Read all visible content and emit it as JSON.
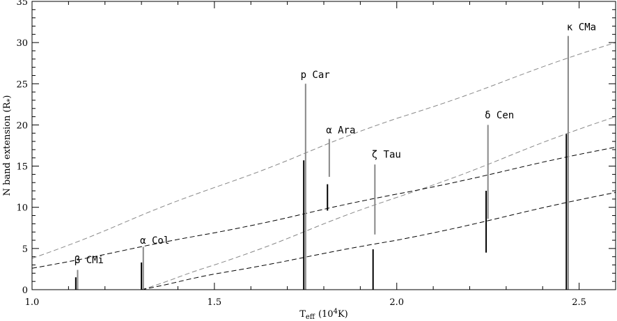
{
  "chart_data": {
    "type": "scatter",
    "xlabel": "T",
    "xlabel_sub": "eff",
    "xlabel_unit": "(10",
    "xlabel_unit_exp": "4",
    "xlabel_unit_end": "K)",
    "ylabel": "N band extension (R",
    "ylabel_sub": "*",
    "ylabel_end": ")",
    "xlim": [
      1.0,
      2.6
    ],
    "ylim": [
      0,
      35
    ],
    "xticks": [
      {
        "value": 1.0,
        "label": "1.0"
      },
      {
        "value": 1.5,
        "label": "1.5"
      },
      {
        "value": 2.0,
        "label": "2.0"
      },
      {
        "value": 2.5,
        "label": "2.5"
      }
    ],
    "yticks": [
      {
        "value": 0,
        "label": "0"
      },
      {
        "value": 5,
        "label": "5"
      },
      {
        "value": 10,
        "label": "10"
      },
      {
        "value": 15,
        "label": "15"
      },
      {
        "value": 20,
        "label": "20"
      },
      {
        "value": 25,
        "label": "25"
      },
      {
        "value": 30,
        "label": "30"
      },
      {
        "value": 35,
        "label": "35"
      }
    ],
    "stars": [
      {
        "name": "β CMi",
        "label_x": 1.12,
        "label_y": 3.2,
        "bars": [
          {
            "x": 1.12,
            "y0": 0,
            "y1": 1.5,
            "color": "#000000"
          },
          {
            "x": 1.125,
            "y0": 0,
            "y1": 2.4,
            "color": "#888888"
          }
        ]
      },
      {
        "name": "α Col",
        "label_x": 1.3,
        "label_y": 5.6,
        "bars": [
          {
            "x": 1.3,
            "y0": 0,
            "y1": 3.3,
            "color": "#000000"
          },
          {
            "x": 1.305,
            "y0": 0,
            "y1": 5.2,
            "color": "#888888"
          }
        ]
      },
      {
        "name": "p Car",
        "label_x": 1.74,
        "label_y": 25.7,
        "bars": [
          {
            "x": 1.745,
            "y0": 0,
            "y1": 15.7,
            "color": "#000000"
          },
          {
            "x": 1.75,
            "y0": 0,
            "y1": 25.0,
            "color": "#888888"
          }
        ]
      },
      {
        "name": "α Ara",
        "label_x": 1.81,
        "label_y": 19.0,
        "bars": [
          {
            "x": 1.81,
            "y0": 9.6,
            "y1": 12.8,
            "color": "#000000"
          },
          {
            "x": 1.815,
            "y0": 13.7,
            "y1": 18.3,
            "color": "#888888"
          }
        ]
      },
      {
        "name": "ζ Tau",
        "label_x": 1.935,
        "label_y": 16.0,
        "bars": [
          {
            "x": 1.935,
            "y0": 0,
            "y1": 4.9,
            "color": "#000000"
          },
          {
            "x": 1.94,
            "y0": 6.7,
            "y1": 15.2,
            "color": "#888888"
          }
        ]
      },
      {
        "name": "δ Cen",
        "label_x": 2.245,
        "label_y": 20.8,
        "bars": [
          {
            "x": 2.245,
            "y0": 4.5,
            "y1": 12.0,
            "color": "#000000"
          },
          {
            "x": 2.25,
            "y0": 8.6,
            "y1": 20.0,
            "color": "#888888"
          }
        ]
      },
      {
        "name": "κ CMa",
        "label_x": 2.47,
        "label_y": 31.5,
        "bars": [
          {
            "x": 2.465,
            "y0": 0,
            "y1": 18.9,
            "color": "#000000"
          },
          {
            "x": 2.47,
            "y0": 0,
            "y1": 30.8,
            "color": "#888888"
          }
        ]
      }
    ],
    "curves": [
      {
        "color": "#888888",
        "points": [
          [
            1.0,
            3.8
          ],
          [
            1.5,
            12.4
          ],
          [
            2.0,
            20.8
          ],
          [
            2.6,
            30.0
          ]
        ]
      },
      {
        "color": "#888888",
        "points": [
          [
            1.3,
            0.0
          ],
          [
            1.5,
            3.0
          ],
          [
            2.0,
            11.2
          ],
          [
            2.6,
            21.0
          ]
        ]
      },
      {
        "color": "#000000",
        "points": [
          [
            1.0,
            2.6
          ],
          [
            1.5,
            6.9
          ],
          [
            2.0,
            11.6
          ],
          [
            2.6,
            17.3
          ]
        ]
      },
      {
        "color": "#000000",
        "points": [
          [
            1.3,
            0.0
          ],
          [
            1.5,
            1.9
          ],
          [
            2.0,
            6.0
          ],
          [
            2.6,
            11.8
          ]
        ]
      }
    ]
  }
}
